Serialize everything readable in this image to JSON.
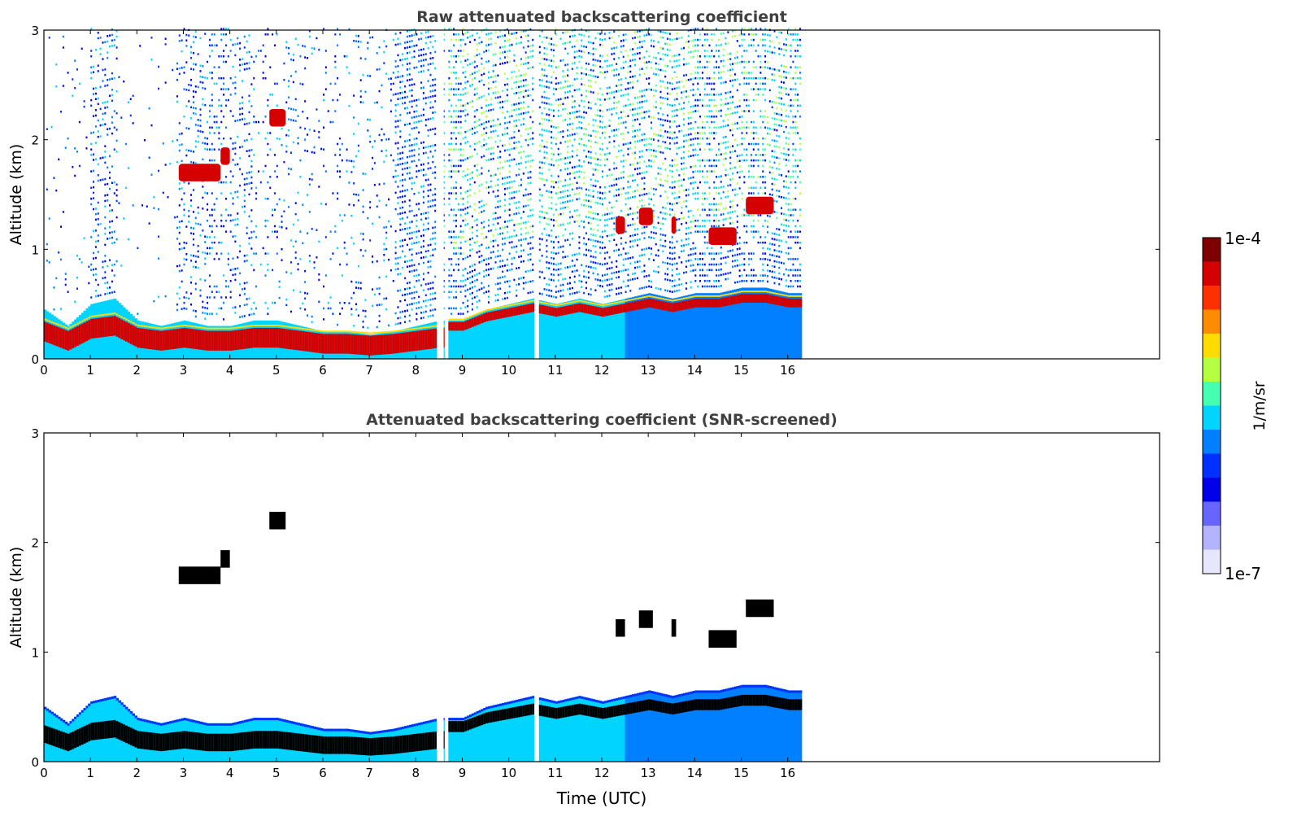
{
  "chart_data": [
    {
      "type": "heatmap",
      "title": "Raw attenuated backscattering coefficient",
      "xlabel": "",
      "ylabel": "Altitude (km)",
      "xlim": [
        0,
        24
      ],
      "ylim": [
        0,
        3
      ],
      "xticks": [
        "0",
        "1",
        "2",
        "3",
        "4",
        "5",
        "6",
        "7",
        "8",
        "9",
        "10",
        "11",
        "12",
        "13",
        "14",
        "15",
        "16"
      ],
      "yticks": [
        "0",
        "1",
        "2",
        "3"
      ],
      "data_end_time": 16.3,
      "boundary_layer_top": [
        [
          0,
          0.45
        ],
        [
          0.5,
          0.3
        ],
        [
          1,
          0.5
        ],
        [
          1.5,
          0.55
        ],
        [
          2,
          0.35
        ],
        [
          2.5,
          0.3
        ],
        [
          3,
          0.35
        ],
        [
          3.5,
          0.3
        ],
        [
          4,
          0.3
        ],
        [
          4.5,
          0.35
        ],
        [
          5,
          0.35
        ],
        [
          5.5,
          0.3
        ],
        [
          6,
          0.25
        ],
        [
          6.5,
          0.25
        ],
        [
          7,
          0.22
        ],
        [
          7.5,
          0.25
        ],
        [
          8,
          0.3
        ],
        [
          8.5,
          0.35
        ],
        [
          9,
          0.35
        ],
        [
          9.5,
          0.45
        ],
        [
          10,
          0.5
        ],
        [
          10.5,
          0.55
        ],
        [
          11,
          0.5
        ],
        [
          11.5,
          0.55
        ],
        [
          12,
          0.5
        ],
        [
          12.5,
          0.55
        ],
        [
          13,
          0.6
        ],
        [
          13.5,
          0.55
        ],
        [
          14,
          0.6
        ],
        [
          14.5,
          0.6
        ],
        [
          15,
          0.65
        ],
        [
          15.5,
          0.65
        ],
        [
          16,
          0.6
        ],
        [
          16.3,
          0.6
        ]
      ],
      "cloud_layers": [
        {
          "t0": 2.9,
          "t1": 3.8,
          "z": 1.7
        },
        {
          "t0": 3.8,
          "t1": 4.0,
          "z": 1.85
        },
        {
          "t0": 4.85,
          "t1": 5.2,
          "z": 2.2
        },
        {
          "t0": 12.3,
          "t1": 12.5,
          "z": 1.22
        },
        {
          "t0": 12.8,
          "t1": 13.1,
          "z": 1.3
        },
        {
          "t0": 13.5,
          "t1": 13.6,
          "z": 1.22
        },
        {
          "t0": 14.3,
          "t1": 14.9,
          "z": 1.12
        },
        {
          "t0": 15.1,
          "t1": 15.7,
          "z": 1.4
        }
      ],
      "data_gaps": [
        [
          8.45,
          8.55
        ],
        [
          8.62,
          8.66
        ],
        [
          10.55,
          10.62
        ]
      ]
    },
    {
      "type": "heatmap",
      "title": "Attenuated backscattering coefficient (SNR-screened)",
      "xlabel": "Time (UTC)",
      "ylabel": "Altitude (km)",
      "xlim": [
        0,
        24
      ],
      "ylim": [
        0,
        3
      ],
      "xticks": [
        "0",
        "1",
        "2",
        "3",
        "4",
        "5",
        "6",
        "7",
        "8",
        "9",
        "10",
        "11",
        "12",
        "13",
        "14",
        "15",
        "16"
      ],
      "yticks": [
        "0",
        "1",
        "2",
        "3"
      ],
      "data_end_time": 16.3,
      "cloud_layers": [
        {
          "t0": 2.9,
          "t1": 3.8,
          "z": 1.7
        },
        {
          "t0": 3.8,
          "t1": 4.0,
          "z": 1.85
        },
        {
          "t0": 4.85,
          "t1": 5.2,
          "z": 2.2
        },
        {
          "t0": 12.3,
          "t1": 12.5,
          "z": 1.22
        },
        {
          "t0": 12.8,
          "t1": 13.1,
          "z": 1.3
        },
        {
          "t0": 13.5,
          "t1": 13.6,
          "z": 1.22
        },
        {
          "t0": 14.3,
          "t1": 14.9,
          "z": 1.12
        },
        {
          "t0": 15.1,
          "t1": 15.7,
          "z": 1.4
        }
      ]
    }
  ],
  "colorbar": {
    "label": "1/m/sr",
    "max_label": "1e-4",
    "min_label": "1e-7",
    "colors": [
      "#7f0000",
      "#d50000",
      "#ff3000",
      "#ff8c00",
      "#ffdc00",
      "#b4ff42",
      "#45ffb2",
      "#00d4ff",
      "#0080ff",
      "#0030ff",
      "#0000e8",
      "#6666ff",
      "#b3b3ff",
      "#e6e6ff"
    ]
  }
}
